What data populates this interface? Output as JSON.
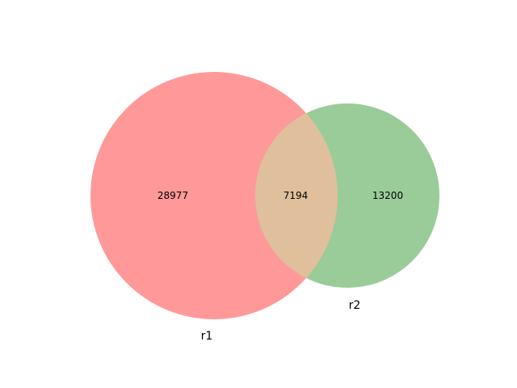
{
  "chart_data": {
    "type": "venn",
    "sets": [
      {
        "name": "r1",
        "only_count": "28977",
        "color": "#ff9999",
        "size": 36171
      },
      {
        "name": "r2",
        "only_count": "13200",
        "color": "#99cc99",
        "size": 20394
      }
    ],
    "intersection": {
      "count": "7194",
      "color": "#e0c09c"
    }
  }
}
